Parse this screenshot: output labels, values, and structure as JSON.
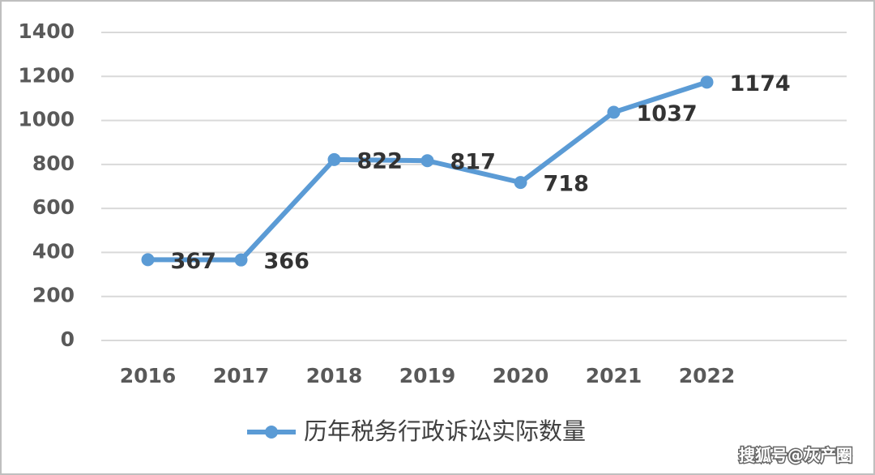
{
  "chart_data": {
    "type": "line",
    "categories": [
      "2016",
      "2017",
      "2018",
      "2019",
      "2020",
      "2021",
      "2022"
    ],
    "series": [
      {
        "name": "历年税务行政诉讼实际数量",
        "color": "#5b9bd5",
        "values": [
          367,
          366,
          822,
          817,
          718,
          1037,
          1174
        ]
      }
    ],
    "ylim": [
      0,
      1400
    ],
    "yticks": [
      0,
      200,
      400,
      600,
      800,
      1000,
      1200,
      1400
    ],
    "grid": true,
    "legend": "bottom",
    "watermark": "搜狐号@灰产圈"
  }
}
